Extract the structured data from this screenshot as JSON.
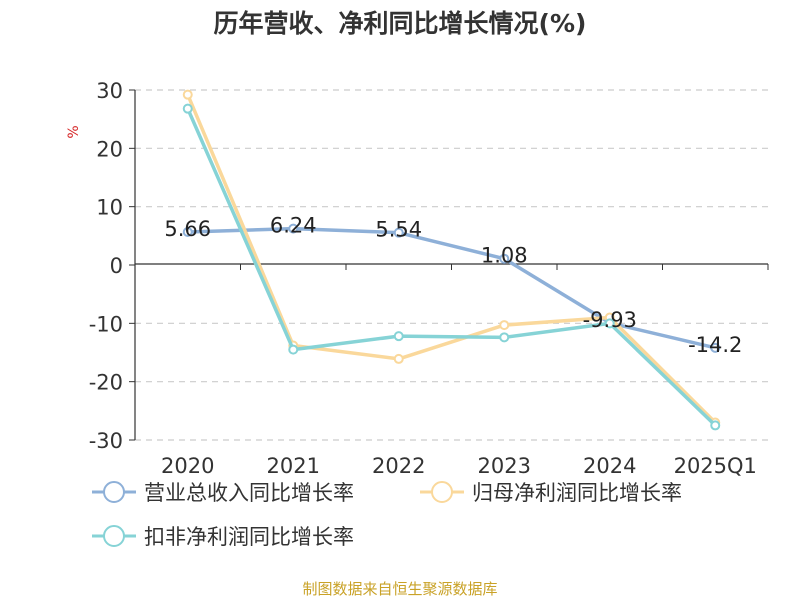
{
  "chart_data": {
    "type": "line",
    "title": "历年营收、净利同比增长情况(%)",
    "ylabel": "%",
    "categories": [
      "2020",
      "2021",
      "2022",
      "2023",
      "2024",
      "2025Q1"
    ],
    "ylim": [
      -30,
      30
    ],
    "yticks": [
      30,
      20,
      10,
      0,
      -10,
      -20,
      -30
    ],
    "grid": "horizontal-dashed",
    "legend_position": "bottom-left",
    "series": [
      {
        "name": "营业总收入同比增长率",
        "color": "#8eb0d8",
        "values": [
          5.66,
          6.24,
          5.54,
          1.08,
          -9.93,
          -14.2
        ],
        "data_labels": [
          "5.66",
          "6.24",
          "5.54",
          "1.08",
          "-9.93",
          "-14.2"
        ]
      },
      {
        "name": "归母净利润同比增长率",
        "color": "#fad89b",
        "values": [
          29.2,
          -13.8,
          -16.1,
          -10.3,
          -9.0,
          -27.0
        ]
      },
      {
        "name": "扣非净利润同比增长率",
        "color": "#86d3d6",
        "values": [
          26.8,
          -14.5,
          -12.2,
          -12.4,
          -10.0,
          -27.5
        ]
      }
    ]
  },
  "source_note": "制图数据来自恒生聚源数据库"
}
